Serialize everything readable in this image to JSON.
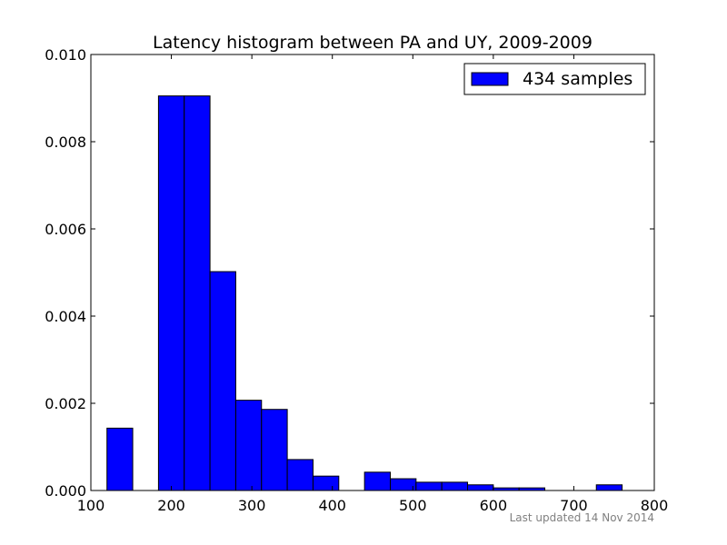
{
  "chart_data": {
    "type": "bar",
    "title": "Latency histogram between PA and UY, 2009-2009",
    "xlabel": "",
    "ylabel": "",
    "xlim": [
      100,
      800
    ],
    "ylim": [
      0,
      0.01
    ],
    "x_ticks": [
      100,
      200,
      300,
      400,
      500,
      600,
      700,
      800
    ],
    "x_tick_labels": [
      "100",
      "200",
      "300",
      "400",
      "500",
      "600",
      "700",
      "800"
    ],
    "y_ticks": [
      0,
      0.002,
      0.004,
      0.006,
      0.008,
      0.01
    ],
    "y_tick_labels": [
      "0.000",
      "0.002",
      "0.004",
      "0.006",
      "0.008",
      "0.010"
    ],
    "grid": false,
    "legend_position": "top-right",
    "bar_color": "#0000ff",
    "series": [
      {
        "name": "434 samples",
        "bins": [
          {
            "start": 120,
            "end": 152,
            "value": 0.00143
          },
          {
            "start": 184,
            "end": 216,
            "value": 0.00905
          },
          {
            "start": 216,
            "end": 248,
            "value": 0.00905
          },
          {
            "start": 248,
            "end": 280,
            "value": 0.00502
          },
          {
            "start": 280,
            "end": 312,
            "value": 0.00207
          },
          {
            "start": 312,
            "end": 344,
            "value": 0.00186
          },
          {
            "start": 344,
            "end": 376,
            "value": 0.00071
          },
          {
            "start": 376,
            "end": 408,
            "value": 0.00033
          },
          {
            "start": 440,
            "end": 472,
            "value": 0.00042
          },
          {
            "start": 472,
            "end": 504,
            "value": 0.00027
          },
          {
            "start": 504,
            "end": 536,
            "value": 0.00019
          },
          {
            "start": 536,
            "end": 568,
            "value": 0.00019
          },
          {
            "start": 568,
            "end": 600,
            "value": 0.00013
          },
          {
            "start": 600,
            "end": 632,
            "value": 6e-05
          },
          {
            "start": 632,
            "end": 664,
            "value": 6e-05
          },
          {
            "start": 728,
            "end": 760,
            "value": 0.00013
          }
        ]
      }
    ],
    "footnote": "Last updated 14 Nov 2014"
  }
}
